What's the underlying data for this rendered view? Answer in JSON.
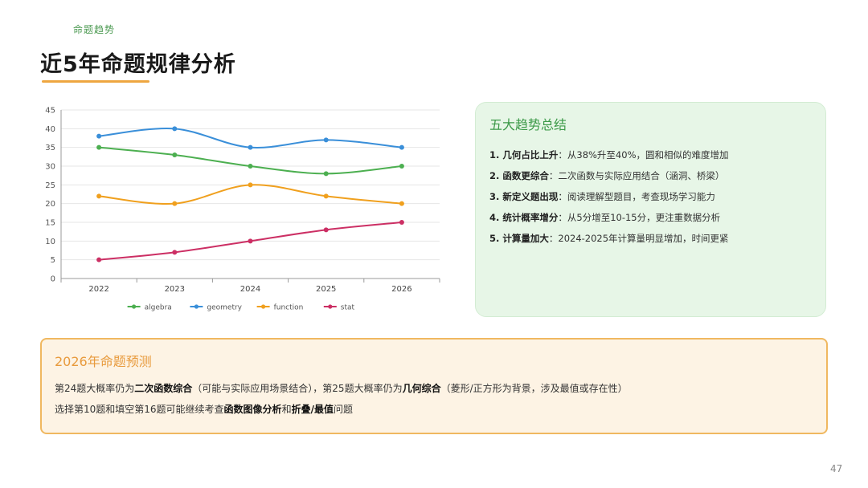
{
  "header": {
    "section_tag": "命题趋势",
    "title": "近5年命题规律分析"
  },
  "chart_data": {
    "type": "line",
    "smooth": true,
    "categories": [
      "2022",
      "2023",
      "2024",
      "2025",
      "2026"
    ],
    "ylim": [
      0,
      45
    ],
    "yticks": [
      0,
      5,
      10,
      15,
      20,
      25,
      30,
      35,
      40,
      45
    ],
    "grid": true,
    "legend_position": "bottom",
    "series": [
      {
        "name": "algebra",
        "color": "#4caf50",
        "values": [
          35,
          33,
          30,
          28,
          30
        ]
      },
      {
        "name": "geometry",
        "color": "#3a8fd9",
        "values": [
          38,
          40,
          35,
          37,
          35
        ]
      },
      {
        "name": "function",
        "color": "#f0a01e",
        "values": [
          22,
          20,
          25,
          22,
          20
        ]
      },
      {
        "name": "stat",
        "color": "#cc2f64",
        "values": [
          5,
          7,
          10,
          13,
          15
        ]
      }
    ]
  },
  "summary": {
    "title": "五大趋势总结",
    "items": [
      {
        "head": "1. 几何占比上升",
        "body": "：从38%升至40%，圆和相似的难度增加"
      },
      {
        "head": "2. 函数更综合",
        "body": "：二次函数与实际应用结合（涵洞、桥梁）"
      },
      {
        "head": "3. 新定义题出现",
        "body": "：阅读理解型题目，考查现场学习能力"
      },
      {
        "head": "4. 统计概率增分",
        "body": "：从5分增至10-15分，更注重数据分析"
      },
      {
        "head": "5. 计算量加大",
        "body": "：2024-2025年计算量明显增加，时间更紧"
      }
    ]
  },
  "prediction": {
    "title": "2026年命题预测",
    "line1": {
      "t1": "第24题大概率仍为",
      "b1": "二次函数综合",
      "t2": "（可能与实际应用场景结合），第25题大概率仍为",
      "b2": "几何综合",
      "t3": "（菱形/正方形为背景，涉及最值或存在性）"
    },
    "line2": {
      "t1": "选择第10题和填空第16题可能继续考查",
      "b1": "函数图像分析",
      "t2": "和",
      "b2": "折叠/最值",
      "t3": "问题"
    }
  },
  "page_number": "47"
}
